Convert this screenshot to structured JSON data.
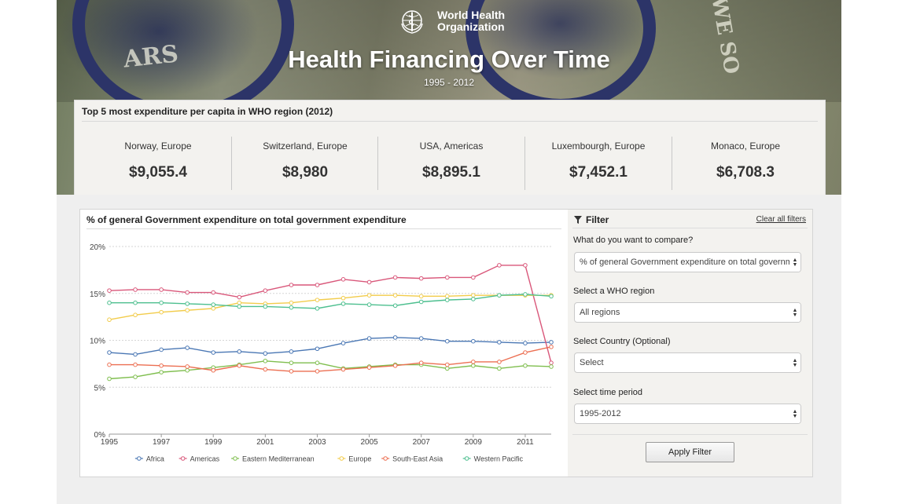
{
  "header": {
    "org_name_line1": "World Health",
    "org_name_line2": "Organization",
    "logo_icon": "who-emblem",
    "title": "Health Financing Over Time",
    "subtitle": "1995 - 2012"
  },
  "top5": {
    "heading": "Top 5 most expenditure per capita in WHO region (2012)",
    "items": [
      {
        "label": "Norway, Europe",
        "value": "$9,055.4"
      },
      {
        "label": "Switzerland, Europe",
        "value": "$8,980"
      },
      {
        "label": "USA, Americas",
        "value": "$8,895.1"
      },
      {
        "label": "Luxembourgh, Europe",
        "value": "$7,452.1"
      },
      {
        "label": "Monaco, Europe",
        "value": "$6,708.3"
      }
    ]
  },
  "chart_panel": {
    "title": "% of general Government expenditure on total government expenditure"
  },
  "chart_data": {
    "type": "line",
    "title": "% of general Government expenditure on total government expenditure",
    "xlabel": "",
    "ylabel": "",
    "x": [
      1995,
      1996,
      1997,
      1998,
      1999,
      2000,
      2001,
      2002,
      2003,
      2004,
      2005,
      2006,
      2007,
      2008,
      2009,
      2010,
      2011,
      2012
    ],
    "xticks": [
      "1995",
      "1997",
      "1999",
      "2001",
      "2003",
      "2005",
      "2007",
      "2009",
      "2011"
    ],
    "yticks": [
      "0%",
      "5%",
      "10%",
      "15%",
      "20%"
    ],
    "ylim": [
      0,
      20
    ],
    "grid": true,
    "legend_position": "bottom",
    "series": [
      {
        "name": "Africa",
        "color": "#4a77b4",
        "values": [
          8.7,
          8.5,
          9.0,
          9.2,
          8.7,
          8.8,
          8.6,
          8.8,
          9.1,
          9.7,
          10.2,
          10.3,
          10.2,
          9.9,
          9.9,
          9.8,
          9.7,
          9.8
        ]
      },
      {
        "name": "Americas",
        "color": "#d9577a",
        "values": [
          15.3,
          15.4,
          15.4,
          15.1,
          15.1,
          14.6,
          15.3,
          15.9,
          15.9,
          16.5,
          16.2,
          16.7,
          16.6,
          16.7,
          16.7,
          18.0,
          18.0,
          7.6
        ]
      },
      {
        "name": "Eastern Mediterranean",
        "color": "#7fbe4e",
        "values": [
          5.9,
          6.1,
          6.6,
          6.8,
          7.1,
          7.4,
          7.8,
          7.6,
          7.6,
          7.0,
          7.2,
          7.4,
          7.4,
          7.0,
          7.3,
          7.0,
          7.3,
          7.2
        ]
      },
      {
        "name": "Europe",
        "color": "#f2cc4b",
        "values": [
          12.2,
          12.7,
          13.0,
          13.2,
          13.4,
          14.0,
          13.9,
          14.0,
          14.3,
          14.5,
          14.8,
          14.8,
          14.7,
          14.7,
          14.8,
          14.8,
          14.8,
          14.8
        ]
      },
      {
        "name": "South-East Asia",
        "color": "#ec6f52",
        "values": [
          7.4,
          7.4,
          7.3,
          7.2,
          6.8,
          7.3,
          6.9,
          6.7,
          6.7,
          6.9,
          7.1,
          7.3,
          7.6,
          7.4,
          7.7,
          7.7,
          8.7,
          9.3
        ]
      },
      {
        "name": "Western Pacific",
        "color": "#4dbf8f",
        "values": [
          14.0,
          14.0,
          14.0,
          13.9,
          13.8,
          13.6,
          13.6,
          13.5,
          13.4,
          13.9,
          13.8,
          13.7,
          14.1,
          14.3,
          14.4,
          14.8,
          14.9,
          14.7
        ]
      }
    ]
  },
  "filter": {
    "heading": "Filter",
    "icon": "funnel-icon",
    "clear_label": "Clear all filters",
    "fields": [
      {
        "label": "What do you want to compare?",
        "value": "% of general Government expenditure on total government expenditure"
      },
      {
        "label": "Select a WHO region",
        "value": "All regions"
      },
      {
        "label": "Select Country (Optional)",
        "value": "Select"
      },
      {
        "label": "Select time period",
        "value": "1995-2012"
      }
    ],
    "apply_label": "Apply Filter"
  }
}
